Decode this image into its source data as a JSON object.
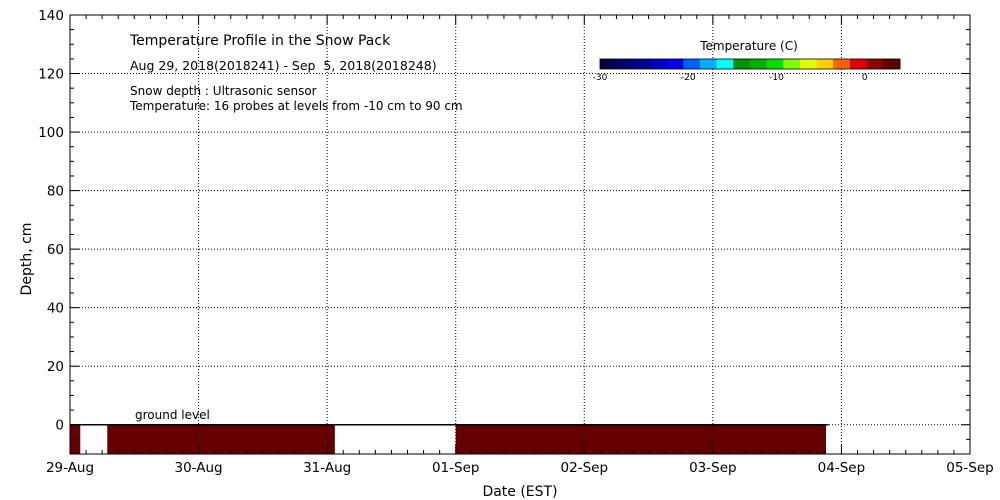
{
  "chart_data": {
    "type": "heatmap",
    "title": "Temperature Profile in the Snow Pack",
    "subtitle": "Aug 29, 2018(2018241) - Sep  5, 2018(2018248)",
    "notes": [
      "Snow depth : Ultrasonic sensor",
      "Temperature: 16 probes at levels from -10 cm to 90 cm"
    ],
    "xlabel": "Date (EST)",
    "ylabel": "Depth, cm",
    "x_ticks": [
      "29-Aug",
      "30-Aug",
      "31-Aug",
      "01-Sep",
      "02-Sep",
      "03-Sep",
      "04-Sep",
      "05-Sep"
    ],
    "x_range_days": [
      0,
      7
    ],
    "ylim": [
      -10,
      140
    ],
    "y_ticks": [
      0,
      20,
      40,
      60,
      80,
      100,
      120,
      140
    ],
    "grid": true,
    "ground_level_label": "ground level",
    "ground_level": 0,
    "snow_depth_end_day": 5.9,
    "temperature_blocks": [
      {
        "start_day": 0.0,
        "end_day": 0.08,
        "depth_from": -10,
        "depth_to": 0,
        "color": "#640000"
      },
      {
        "start_day": 0.29,
        "end_day": 2.06,
        "depth_from": -10,
        "depth_to": 0,
        "color": "#640000"
      },
      {
        "start_day": 3.0,
        "end_day": 5.88,
        "depth_from": -10,
        "depth_to": 0,
        "color": "#640000"
      }
    ],
    "colorbar": {
      "title": "Temperature (C)",
      "range": [
        -30,
        4
      ],
      "ticks": [
        -30,
        -20,
        -10,
        0
      ],
      "tick_labels": [
        "-30",
        "-20",
        "-10",
        "0"
      ],
      "colors": [
        "#000040",
        "#000070",
        "#000090",
        "#0000c0",
        "#0000f0",
        "#0060ff",
        "#00b0ff",
        "#00ffff",
        "#009000",
        "#00b000",
        "#00e000",
        "#80ff00",
        "#e0ff00",
        "#ffd000",
        "#ff6000",
        "#e00000",
        "#900000",
        "#600000"
      ]
    },
    "legend_placement": "top-right"
  }
}
